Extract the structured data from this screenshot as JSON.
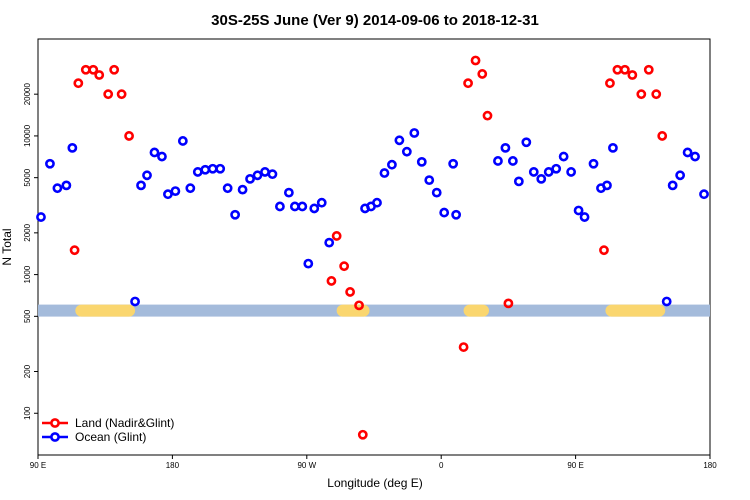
{
  "chart_data": {
    "type": "scatter",
    "title": "30S-25S June (Ver 9)   2014-09-06 to 2018-12-31",
    "xlabel": "Longitude (deg E)",
    "ylabel": "N Total",
    "yscale": "log",
    "xlim": [
      90,
      540
    ],
    "ylim": [
      50,
      50000
    ],
    "x_ticks": [
      {
        "value": 90,
        "label": "90 E"
      },
      {
        "value": 180,
        "label": "180"
      },
      {
        "value": 270,
        "label": "90 W"
      },
      {
        "value": 360,
        "label": "0"
      },
      {
        "value": 450,
        "label": "90 E"
      },
      {
        "value": 540,
        "label": "180"
      }
    ],
    "y_ticks": [
      {
        "value": 100,
        "label": "100"
      },
      {
        "value": 200,
        "label": "200"
      },
      {
        "value": 500,
        "label": "500"
      },
      {
        "value": 1000,
        "label": "1000"
      },
      {
        "value": 2000,
        "label": "2000"
      },
      {
        "value": 5000,
        "label": "5000"
      },
      {
        "value": 10000,
        "label": "10000"
      },
      {
        "value": 20000,
        "label": "20000"
      }
    ],
    "band": {
      "value": 550,
      "color": "#a4bbdb",
      "land_color": "#fad66f",
      "land_segments": [
        [
          115,
          155
        ],
        [
          290,
          312
        ],
        [
          375,
          392
        ],
        [
          470,
          510
        ]
      ]
    },
    "legend": {
      "position": "bottom-left",
      "entries": [
        "Land (Nadir&Glint)",
        "Ocean (Glint)"
      ]
    },
    "series": [
      {
        "name": "Land (Nadir&Glint)",
        "color": "#ff0000",
        "points": [
          [
            114.5,
            1500
          ],
          [
            117,
            24000
          ],
          [
            122,
            30000
          ],
          [
            127,
            30000
          ],
          [
            131,
            27500
          ],
          [
            137,
            20000
          ],
          [
            141,
            30000
          ],
          [
            146,
            20000
          ],
          [
            151,
            10000
          ],
          [
            286.5,
            900
          ],
          [
            290,
            1900
          ],
          [
            295,
            1150
          ],
          [
            299,
            750
          ],
          [
            305,
            600
          ],
          [
            307.5,
            70
          ],
          [
            375,
            300
          ],
          [
            378,
            24000
          ],
          [
            383,
            35000
          ],
          [
            387.5,
            28000
          ],
          [
            391,
            14000
          ],
          [
            405,
            620
          ],
          [
            469,
            1500
          ],
          [
            473,
            24000
          ],
          [
            478,
            30000
          ],
          [
            483,
            30000
          ],
          [
            488,
            27500
          ],
          [
            494,
            20000
          ],
          [
            499,
            30000
          ],
          [
            504,
            20000
          ],
          [
            508,
            10000
          ]
        ]
      },
      {
        "name": "Ocean (Glint)",
        "color": "#0000ff",
        "points": [
          [
            92,
            2600
          ],
          [
            98,
            6300
          ],
          [
            103,
            4200
          ],
          [
            109,
            4400
          ],
          [
            113,
            8200
          ],
          [
            155,
            640
          ],
          [
            159,
            4400
          ],
          [
            163,
            5200
          ],
          [
            168,
            7600
          ],
          [
            173,
            7100
          ],
          [
            177,
            3800
          ],
          [
            182,
            4000
          ],
          [
            187,
            9200
          ],
          [
            192,
            4200
          ],
          [
            197,
            5500
          ],
          [
            202,
            5700
          ],
          [
            207,
            5800
          ],
          [
            212,
            5800
          ],
          [
            217,
            4200
          ],
          [
            222,
            2700
          ],
          [
            227,
            4100
          ],
          [
            232,
            4900
          ],
          [
            237,
            5200
          ],
          [
            242,
            5500
          ],
          [
            247,
            5300
          ],
          [
            252,
            3100
          ],
          [
            258,
            3900
          ],
          [
            262,
            3100
          ],
          [
            267,
            3100
          ],
          [
            271,
            1200
          ],
          [
            275,
            3000
          ],
          [
            280,
            3300
          ],
          [
            285,
            1700
          ],
          [
            309,
            3000
          ],
          [
            313,
            3100
          ],
          [
            317,
            3300
          ],
          [
            322,
            5400
          ],
          [
            327,
            6200
          ],
          [
            332,
            9300
          ],
          [
            337,
            7700
          ],
          [
            342,
            10500
          ],
          [
            347,
            6500
          ],
          [
            352,
            4800
          ],
          [
            357,
            3900
          ],
          [
            362,
            2800
          ],
          [
            368,
            6300
          ],
          [
            370,
            2700
          ],
          [
            398,
            6600
          ],
          [
            403,
            8200
          ],
          [
            408,
            6600
          ],
          [
            412,
            4700
          ],
          [
            417,
            9000
          ],
          [
            422,
            5500
          ],
          [
            427,
            4900
          ],
          [
            432,
            5500
          ],
          [
            437,
            5800
          ],
          [
            442,
            7100
          ],
          [
            447,
            5500
          ],
          [
            452,
            2900
          ],
          [
            456,
            2600
          ],
          [
            462,
            6300
          ],
          [
            467,
            4200
          ],
          [
            471,
            4400
          ],
          [
            475,
            8200
          ],
          [
            511,
            640
          ],
          [
            515,
            4400
          ],
          [
            520,
            5200
          ],
          [
            525,
            7600
          ],
          [
            530,
            7100
          ],
          [
            536,
            3800
          ]
        ]
      }
    ]
  }
}
